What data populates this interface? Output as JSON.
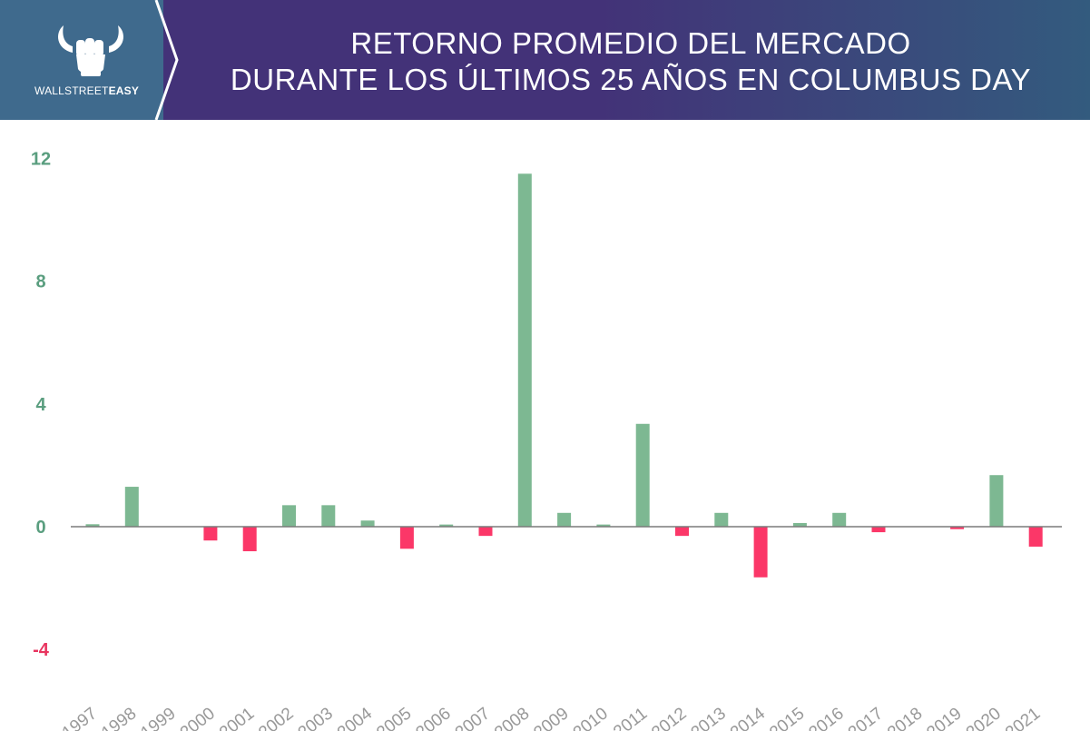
{
  "header": {
    "brand_plain": "WALLSTREET",
    "brand_bold": "EASY",
    "title_line1": "RETORNO PROMEDIO DEL MERCADO",
    "title_line2": "DURANTE LOS ÚLTIMOS 25 AÑOS EN COLUMBUS DAY"
  },
  "colors": {
    "positive": "#7db892",
    "negative": "#fb3768",
    "axis_positive_label": "#5a9e7f",
    "axis_negative_label": "#e8345f",
    "tick_label": "#999999",
    "header_left": "#3f6a8d",
    "header_mid": "#433278",
    "header_right": "#335b7e"
  },
  "chart_data": {
    "type": "bar",
    "categories": [
      "1997",
      "1998",
      "1999",
      "2000",
      "2001",
      "2002",
      "2003",
      "2004",
      "2005",
      "2006",
      "2007",
      "2008",
      "2009",
      "2010",
      "2011",
      "2012",
      "2013",
      "2014",
      "2015",
      "2016",
      "2017",
      "2018",
      "2019",
      "2020",
      "2021"
    ],
    "values": [
      0.08,
      1.3,
      0.0,
      -0.45,
      -0.8,
      0.7,
      0.7,
      0.2,
      -0.72,
      0.07,
      -0.3,
      11.5,
      0.45,
      0.07,
      3.35,
      -0.3,
      0.45,
      -1.65,
      0.12,
      0.45,
      -0.18,
      0.0,
      -0.08,
      1.68,
      -0.65
    ],
    "yticks": [
      "12",
      "8",
      "4",
      "0",
      "-4"
    ],
    "ylim": [
      -4,
      12
    ],
    "grid": false,
    "legend": "none"
  }
}
